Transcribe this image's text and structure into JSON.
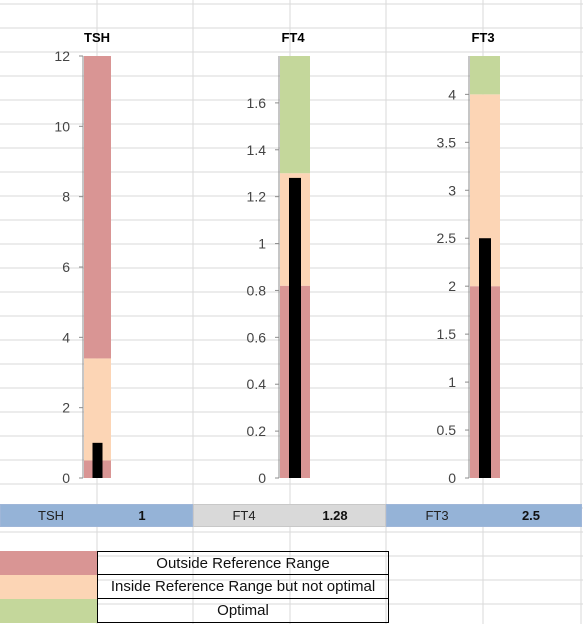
{
  "chart_data": [
    {
      "type": "bar",
      "title": "TSH",
      "ylim": [
        0,
        12
      ],
      "yticks": [
        "0",
        "2",
        "4",
        "6",
        "8",
        "10",
        "12"
      ],
      "bands": [
        {
          "from": 0,
          "to": 0.5,
          "category": "outside"
        },
        {
          "from": 0.5,
          "to": 3.4,
          "category": "inside"
        },
        {
          "from": 3.4,
          "to": 12,
          "category": "outside"
        }
      ],
      "value": 1
    },
    {
      "type": "bar",
      "title": "FT4",
      "ylim": [
        0,
        1.8
      ],
      "yticks": [
        "0",
        "0.2",
        "0.4",
        "0.6",
        "0.8",
        "1",
        "1.2",
        "1.4",
        "1.6"
      ],
      "bands": [
        {
          "from": 0,
          "to": 0.82,
          "category": "outside"
        },
        {
          "from": 0.82,
          "to": 1.3,
          "category": "inside"
        },
        {
          "from": 1.3,
          "to": 1.8,
          "category": "optimal"
        }
      ],
      "value": 1.28
    },
    {
      "type": "bar",
      "title": "FT3",
      "ylim": [
        0,
        4.4
      ],
      "yticks": [
        "0",
        "0.5",
        "1",
        "1.5",
        "2",
        "2.5",
        "3",
        "3.5",
        "4"
      ],
      "bands": [
        {
          "from": 0,
          "to": 2,
          "category": "outside"
        },
        {
          "from": 2,
          "to": 4,
          "category": "inside"
        },
        {
          "from": 4,
          "to": 4.4,
          "category": "optimal"
        }
      ],
      "value": 2.5
    }
  ],
  "colors": {
    "outside": "#d99594",
    "inside": "#fcd5b5",
    "optimal": "#c4d79b",
    "marker": "#000000",
    "summary_blue": "#95b3d7",
    "summary_gray": "#d9d9d9"
  },
  "summary": [
    {
      "name": "TSH",
      "value": "1"
    },
    {
      "name": "FT4",
      "value": "1.28"
    },
    {
      "name": "FT3",
      "value": "2.5"
    }
  ],
  "legend": [
    {
      "label": "Outside Reference Range",
      "color_key": "outside"
    },
    {
      "label": "Inside Reference Range but not optimal",
      "color_key": "inside"
    },
    {
      "label": "Optimal",
      "color_key": "optimal"
    }
  ]
}
